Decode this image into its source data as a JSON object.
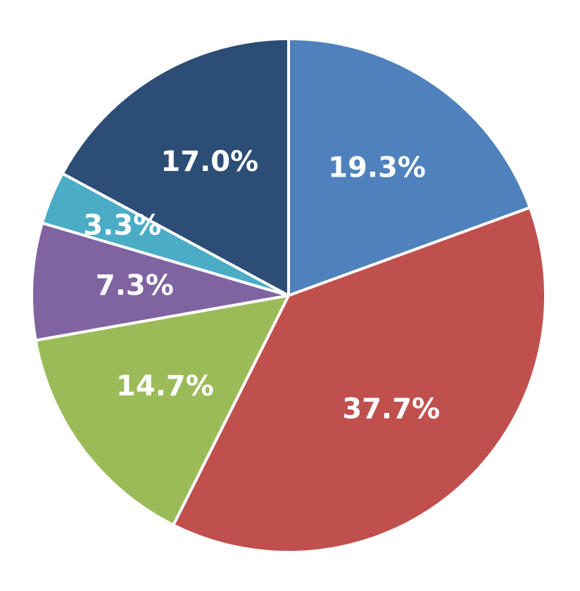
{
  "chart_data": {
    "type": "pie",
    "values": [
      19.3,
      37.7,
      14.7,
      7.3,
      3.3,
      17.0
    ],
    "value_labels": [
      "19.3%",
      "37.7%",
      "14.7%",
      "7.3%",
      "3.3%",
      "17.0%"
    ],
    "colors": [
      "#4f81bd",
      "#c0504d",
      "#9bbb59",
      "#8064a2",
      "#4bacc6",
      "#2c4d75"
    ]
  }
}
